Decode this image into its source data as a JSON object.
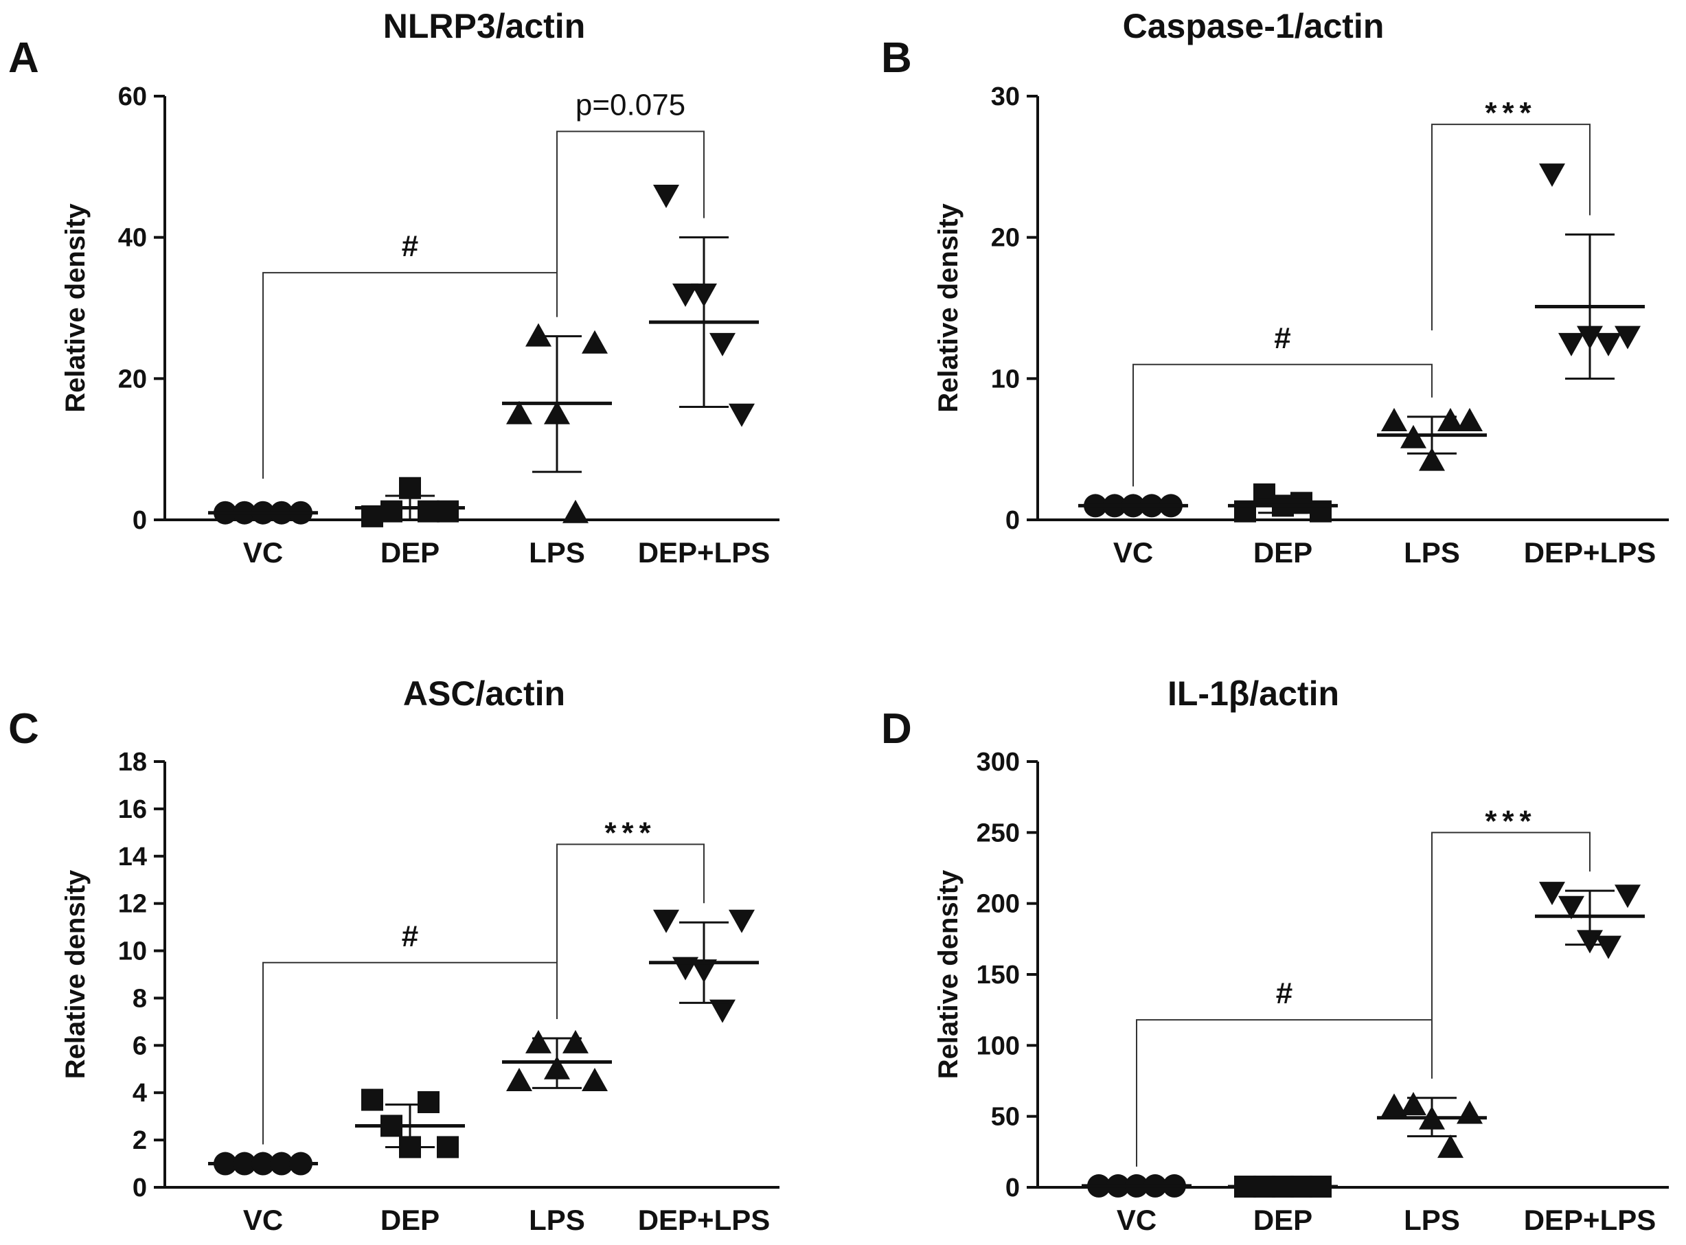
{
  "figure": {
    "background": "#ffffff",
    "ink": "#111111"
  },
  "chart_data": [
    {
      "panel": "A",
      "type": "scatter",
      "title": "NLRP3/actin",
      "ylabel": "Relative density",
      "xlabel": "",
      "categories": [
        "VC",
        "DEP",
        "LPS",
        "DEP+LPS"
      ],
      "markers": [
        "circle",
        "square",
        "triangle-up",
        "triangle-down"
      ],
      "ylim": [
        0,
        60
      ],
      "yticks": [
        0,
        20,
        40,
        60
      ],
      "ytick_labels": [
        "0",
        "20",
        "40",
        "60"
      ],
      "groups": [
        {
          "name": "VC",
          "points": [
            1,
            1,
            1,
            1,
            1
          ],
          "mean": 1,
          "sd_low": 1,
          "sd_high": 1
        },
        {
          "name": "DEP",
          "points": [
            0.5,
            1.2,
            4.5,
            1.2,
            1.2
          ],
          "mean": 1.7,
          "sd_low": 0,
          "sd_high": 3.4
        },
        {
          "name": "LPS",
          "points": [
            15,
            26,
            15,
            1,
            25
          ],
          "mean": 16.5,
          "sd_low": 6.8,
          "sd_high": 26
        },
        {
          "name": "DEP+LPS",
          "points": [
            46,
            32,
            32,
            25,
            15
          ],
          "mean": 28,
          "sd_low": 16,
          "sd_high": 40
        }
      ],
      "comparisons": [
        {
          "from": "VC",
          "to": "LPS",
          "label": "#",
          "style": "sig",
          "y": 35
        },
        {
          "from": "LPS",
          "to": "DEP+LPS",
          "label": "p=0.075",
          "style": "p",
          "y": 55
        }
      ]
    },
    {
      "panel": "B",
      "type": "scatter",
      "title": "Caspase-1/actin",
      "ylabel": "Relative density",
      "xlabel": "",
      "categories": [
        "VC",
        "DEP",
        "LPS",
        "DEP+LPS"
      ],
      "markers": [
        "circle",
        "square",
        "triangle-up",
        "triangle-down"
      ],
      "ylim": [
        0,
        30
      ],
      "yticks": [
        0,
        10,
        20,
        30
      ],
      "ytick_labels": [
        "0",
        "10",
        "20",
        "30"
      ],
      "groups": [
        {
          "name": "VC",
          "points": [
            1,
            1,
            1,
            1,
            1
          ],
          "mean": 1,
          "sd_low": 1,
          "sd_high": 1
        },
        {
          "name": "DEP",
          "points": [
            0.6,
            1.8,
            1.0,
            1.2,
            0.6
          ],
          "mean": 1.0,
          "sd_low": 0.5,
          "sd_high": 1.6
        },
        {
          "name": "LPS",
          "points": [
            7,
            5.8,
            4.2,
            7,
            7
          ],
          "mean": 6.0,
          "sd_low": 4.7,
          "sd_high": 7.3
        },
        {
          "name": "DEP+LPS",
          "points": [
            24.5,
            12.5,
            13,
            12.5,
            13
          ],
          "mean": 15.1,
          "sd_low": 10,
          "sd_high": 20.2
        }
      ],
      "comparisons": [
        {
          "from": "VC",
          "to": "LPS",
          "label": "#",
          "style": "sig",
          "y": 11
        },
        {
          "from": "LPS",
          "to": "DEP+LPS",
          "label": "***",
          "style": "sig",
          "y": 28
        }
      ]
    },
    {
      "panel": "C",
      "type": "scatter",
      "title": "ASC/actin",
      "ylabel": "Relative density",
      "xlabel": "",
      "categories": [
        "VC",
        "DEP",
        "LPS",
        "DEP+LPS"
      ],
      "markers": [
        "circle",
        "square",
        "triangle-up",
        "triangle-down"
      ],
      "ylim": [
        0,
        18
      ],
      "yticks": [
        0,
        2,
        4,
        6,
        8,
        10,
        12,
        14,
        16,
        18
      ],
      "ytick_labels": [
        "0",
        "2",
        "4",
        "6",
        "8",
        "10",
        "12",
        "14",
        "16",
        "18"
      ],
      "groups": [
        {
          "name": "VC",
          "points": [
            1,
            1,
            1,
            1,
            1
          ],
          "mean": 1,
          "sd_low": 1,
          "sd_high": 1
        },
        {
          "name": "DEP",
          "points": [
            3.7,
            2.6,
            1.7,
            3.6,
            1.7
          ],
          "mean": 2.6,
          "sd_low": 1.7,
          "sd_high": 3.5
        },
        {
          "name": "LPS",
          "points": [
            4.5,
            6.1,
            5.0,
            6.1,
            4.5
          ],
          "mean": 5.3,
          "sd_low": 4.2,
          "sd_high": 6.3
        },
        {
          "name": "DEP+LPS",
          "points": [
            11.3,
            9.3,
            9.2,
            7.5,
            11.3
          ],
          "mean": 9.5,
          "sd_low": 7.8,
          "sd_high": 11.2
        }
      ],
      "comparisons": [
        {
          "from": "VC",
          "to": "LPS",
          "label": "#",
          "style": "sig",
          "y": 9.5
        },
        {
          "from": "LPS",
          "to": "DEP+LPS",
          "label": "***",
          "style": "sig",
          "y": 14.5
        }
      ]
    },
    {
      "panel": "D",
      "type": "scatter",
      "title": "IL-1β/actin",
      "ylabel": "Relative density",
      "xlabel": "",
      "categories": [
        "VC",
        "DEP",
        "LPS",
        "DEP+LPS"
      ],
      "markers": [
        "circle",
        "square",
        "triangle-up",
        "triangle-down"
      ],
      "ylim": [
        0,
        300
      ],
      "yticks": [
        0,
        50,
        100,
        150,
        200,
        250,
        300
      ],
      "ytick_labels": [
        "0",
        "50",
        "100",
        "150",
        "200",
        "250",
        "300"
      ],
      "groups": [
        {
          "name": "VC",
          "points": [
            1,
            1,
            1,
            1,
            1
          ],
          "mean": 1,
          "sd_low": 1,
          "sd_high": 1
        },
        {
          "name": "DEP",
          "points": [
            0.5,
            0.5,
            0.5,
            0.5,
            0.5
          ],
          "mean": 0.5,
          "sd_low": 0.5,
          "sd_high": 0.5
        },
        {
          "name": "LPS",
          "points": [
            57,
            58,
            48,
            28,
            52
          ],
          "mean": 49,
          "sd_low": 36,
          "sd_high": 63
        },
        {
          "name": "DEP+LPS",
          "points": [
            208,
            198,
            174,
            170,
            206
          ],
          "mean": 191,
          "sd_low": 171,
          "sd_high": 209
        }
      ],
      "comparisons": [
        {
          "from": "VC",
          "to": "LPS",
          "label": "#",
          "style": "sig",
          "y": 118
        },
        {
          "from": "LPS",
          "to": "DEP+LPS",
          "label": "***",
          "style": "sig",
          "y": 250
        }
      ]
    }
  ]
}
